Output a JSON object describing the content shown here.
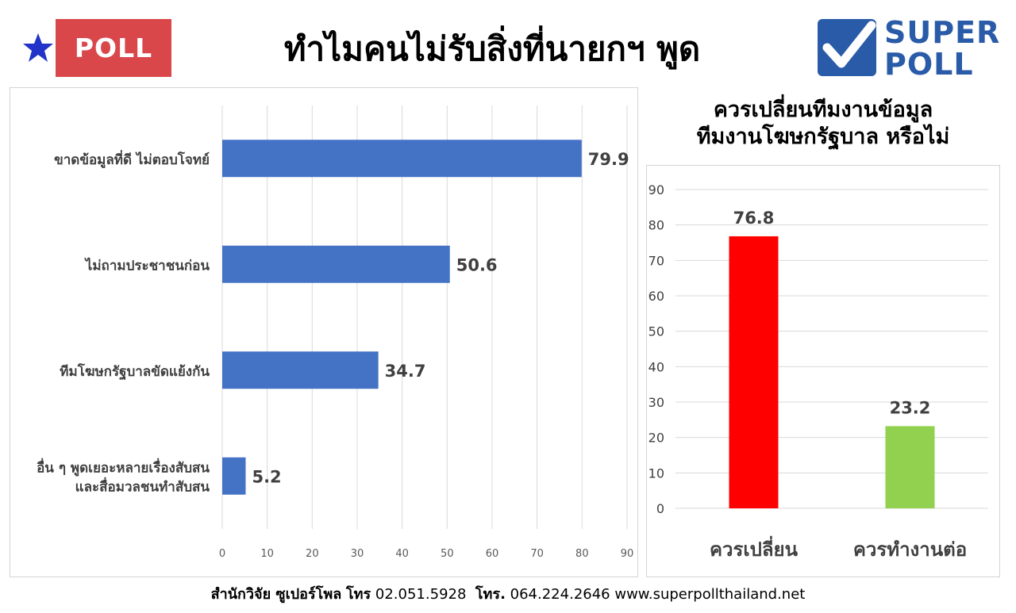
{
  "header": {
    "badge_label": "POLL",
    "title": "ทำไมคนไม่รับสิ่งที่นายกฯ พูด",
    "logo_line1": "SUPER",
    "logo_line2": "POLL"
  },
  "colors": {
    "badge_red": "#d9474b",
    "star_blue": "#2133c9",
    "logo_blue": "#2a5ba8",
    "bar_blue": "#4472c4",
    "bar_red": "#ff0000",
    "bar_green": "#92d050"
  },
  "icons": {
    "star": "star-icon",
    "logo_check": "checkmark-icon"
  },
  "chart_data": [
    {
      "type": "bar",
      "orientation": "horizontal",
      "categories": [
        "ขาดข้อมูลที่ดี ไม่ตอบโจทย์",
        "ไม่ถามประชาชนก่อน",
        "ทีมโฆษกรัฐบาลขัดแย้งกัน",
        "อื่น ๆ พูดเยอะหลายเรื่องสับสน\nและสื่อมวลชนทำสับสน"
      ],
      "values": [
        79.9,
        50.6,
        34.7,
        5.2
      ],
      "value_labels": [
        "79.9",
        "50.6",
        "34.7",
        "5.2"
      ],
      "xlim": [
        0,
        90
      ],
      "x_ticks": [
        0,
        10,
        20,
        30,
        40,
        50,
        60,
        70,
        80,
        90
      ],
      "grid": true,
      "legend": "none"
    },
    {
      "type": "bar",
      "orientation": "vertical",
      "title": "ควรเปลี่ยนทีมงานข้อมูล\nทีมงานโฆษกรัฐบาล หรือไม่",
      "title_lines": [
        "ควรเปลี่ยนทีมงานข้อมูล",
        "ทีมงานโฆษกรัฐบาล หรือไม่"
      ],
      "categories": [
        "ควรเปลี่ยน",
        "ควรทำงานต่อ"
      ],
      "values": [
        76.8,
        23.2
      ],
      "value_labels": [
        "76.8",
        "23.2"
      ],
      "bar_colors": [
        "#ff0000",
        "#92d050"
      ],
      "ylim": [
        0,
        90
      ],
      "y_ticks": [
        0,
        10,
        20,
        30,
        40,
        50,
        60,
        70,
        80,
        90
      ],
      "grid": true,
      "legend": "none"
    }
  ],
  "footer": {
    "org": "สำนักวิจัย ซูเปอร์โพล",
    "tel_label1": "โทร",
    "phone1": "02.051.5928",
    "tel_label2": "โทร.",
    "phone2": "064.224.2646",
    "website": "www.superpollthailand.net"
  }
}
